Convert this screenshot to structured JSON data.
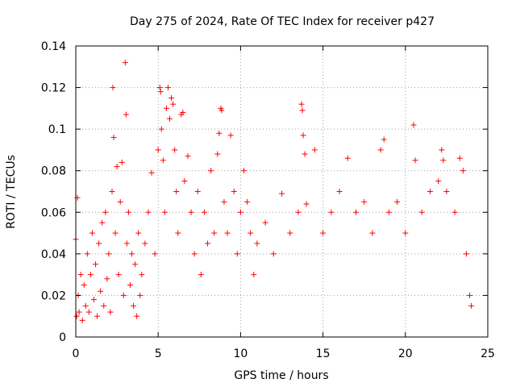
{
  "chart_data": {
    "type": "scatter",
    "title": "Day 275 of 2024, Rate Of TEC Index for receiver p427",
    "xlabel": "GPS time / hours",
    "ylabel": "ROTI / TECUs",
    "xlim": [
      0,
      25
    ],
    "ylim": [
      0,
      0.14
    ],
    "xticks": [
      0,
      5,
      10,
      15,
      20,
      25
    ],
    "xtick_labels": [
      "0",
      "5",
      "10",
      "15",
      "20",
      "25"
    ],
    "yticks": [
      0,
      0.02,
      0.04,
      0.06,
      0.08,
      0.1,
      0.12,
      0.14
    ],
    "ytick_labels": [
      "0",
      "0.02",
      "0.04",
      "0.06",
      "0.08",
      "0.1",
      "0.12",
      "0.14"
    ],
    "grid": true,
    "marker": "+",
    "series": [
      {
        "name": "ROTI",
        "color": "#ff0000",
        "points": [
          [
            0.0,
            0.047
          ],
          [
            0.05,
            0.01
          ],
          [
            0.1,
            0.067
          ],
          [
            0.15,
            0.02
          ],
          [
            0.2,
            0.012
          ],
          [
            0.3,
            0.03
          ],
          [
            0.4,
            0.008
          ],
          [
            0.5,
            0.025
          ],
          [
            0.6,
            0.015
          ],
          [
            0.7,
            0.04
          ],
          [
            0.8,
            0.012
          ],
          [
            0.9,
            0.03
          ],
          [
            1.0,
            0.05
          ],
          [
            1.1,
            0.018
          ],
          [
            1.2,
            0.035
          ],
          [
            1.3,
            0.01
          ],
          [
            1.4,
            0.045
          ],
          [
            1.5,
            0.022
          ],
          [
            1.6,
            0.055
          ],
          [
            1.7,
            0.015
          ],
          [
            1.8,
            0.06
          ],
          [
            1.9,
            0.028
          ],
          [
            2.0,
            0.04
          ],
          [
            2.1,
            0.012
          ],
          [
            2.2,
            0.07
          ],
          [
            2.25,
            0.12
          ],
          [
            2.3,
            0.096
          ],
          [
            2.4,
            0.05
          ],
          [
            2.5,
            0.082
          ],
          [
            2.6,
            0.03
          ],
          [
            2.7,
            0.065
          ],
          [
            2.8,
            0.084
          ],
          [
            2.9,
            0.02
          ],
          [
            3.0,
            0.132
          ],
          [
            3.05,
            0.107
          ],
          [
            3.1,
            0.045
          ],
          [
            3.2,
            0.06
          ],
          [
            3.3,
            0.025
          ],
          [
            3.4,
            0.04
          ],
          [
            3.5,
            0.015
          ],
          [
            3.6,
            0.035
          ],
          [
            3.7,
            0.01
          ],
          [
            3.8,
            0.05
          ],
          [
            3.9,
            0.02
          ],
          [
            4.0,
            0.03
          ],
          [
            4.2,
            0.045
          ],
          [
            4.4,
            0.06
          ],
          [
            4.6,
            0.079
          ],
          [
            4.8,
            0.04
          ],
          [
            5.0,
            0.09
          ],
          [
            5.1,
            0.12
          ],
          [
            5.15,
            0.118
          ],
          [
            5.2,
            0.1
          ],
          [
            5.3,
            0.085
          ],
          [
            5.4,
            0.06
          ],
          [
            5.5,
            0.11
          ],
          [
            5.6,
            0.12
          ],
          [
            5.7,
            0.105
          ],
          [
            5.8,
            0.115
          ],
          [
            5.9,
            0.112
          ],
          [
            6.0,
            0.09
          ],
          [
            6.1,
            0.07
          ],
          [
            6.2,
            0.05
          ],
          [
            6.4,
            0.107
          ],
          [
            6.5,
            0.108
          ],
          [
            6.6,
            0.075
          ],
          [
            6.8,
            0.087
          ],
          [
            7.0,
            0.06
          ],
          [
            7.2,
            0.04
          ],
          [
            7.4,
            0.07
          ],
          [
            7.6,
            0.03
          ],
          [
            7.8,
            0.06
          ],
          [
            8.0,
            0.045
          ],
          [
            8.2,
            0.08
          ],
          [
            8.4,
            0.05
          ],
          [
            8.6,
            0.088
          ],
          [
            8.7,
            0.098
          ],
          [
            8.8,
            0.11
          ],
          [
            8.85,
            0.109
          ],
          [
            9.0,
            0.065
          ],
          [
            9.2,
            0.05
          ],
          [
            9.4,
            0.097
          ],
          [
            9.6,
            0.07
          ],
          [
            9.8,
            0.04
          ],
          [
            10.0,
            0.06
          ],
          [
            10.2,
            0.08
          ],
          [
            10.4,
            0.065
          ],
          [
            10.6,
            0.05
          ],
          [
            10.8,
            0.03
          ],
          [
            11.0,
            0.045
          ],
          [
            11.5,
            0.055
          ],
          [
            12.0,
            0.04
          ],
          [
            12.5,
            0.069
          ],
          [
            13.0,
            0.05
          ],
          [
            13.5,
            0.06
          ],
          [
            13.7,
            0.112
          ],
          [
            13.75,
            0.109
          ],
          [
            13.8,
            0.097
          ],
          [
            13.9,
            0.088
          ],
          [
            14.0,
            0.064
          ],
          [
            14.5,
            0.09
          ],
          [
            15.0,
            0.05
          ],
          [
            15.5,
            0.06
          ],
          [
            16.0,
            0.07
          ],
          [
            16.5,
            0.086
          ],
          [
            17.0,
            0.06
          ],
          [
            17.5,
            0.065
          ],
          [
            18.0,
            0.05
          ],
          [
            18.5,
            0.09
          ],
          [
            18.7,
            0.095
          ],
          [
            19.0,
            0.06
          ],
          [
            19.5,
            0.065
          ],
          [
            20.0,
            0.05
          ],
          [
            20.5,
            0.102
          ],
          [
            20.6,
            0.085
          ],
          [
            21.0,
            0.06
          ],
          [
            21.5,
            0.07
          ],
          [
            22.0,
            0.075
          ],
          [
            22.2,
            0.09
          ],
          [
            22.3,
            0.085
          ],
          [
            22.5,
            0.07
          ],
          [
            23.0,
            0.06
          ],
          [
            23.3,
            0.086
          ],
          [
            23.5,
            0.08
          ],
          [
            23.7,
            0.04
          ],
          [
            23.9,
            0.02
          ],
          [
            24.0,
            0.015
          ]
        ]
      }
    ]
  }
}
